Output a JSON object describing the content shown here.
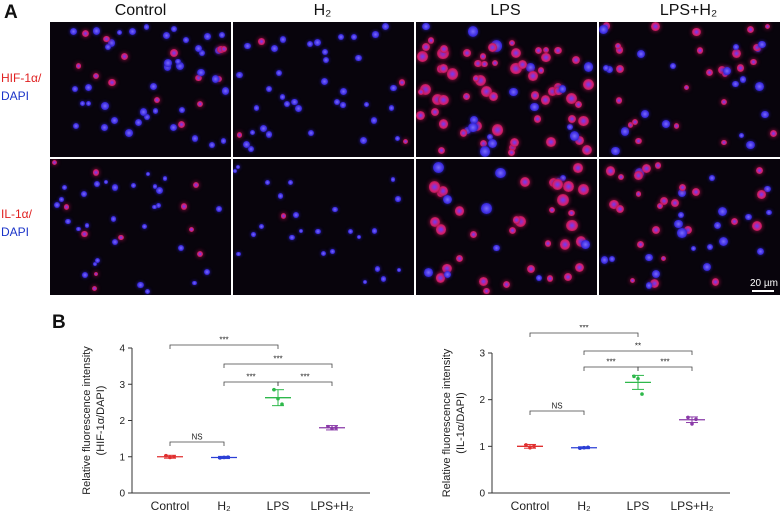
{
  "panel_a": {
    "letter": "A",
    "columns": [
      "Control",
      "H₂",
      "LPS",
      "LPS+H₂"
    ],
    "rows": [
      {
        "marker": "HIF-1α/",
        "stain": "DAPI"
      },
      {
        "marker": "IL-1α/",
        "stain": "DAPI"
      }
    ],
    "scale_bar": "20 µm",
    "colors": {
      "marker": "#e02020",
      "dapi": "#1a33c8",
      "background": "#08040c"
    }
  },
  "panel_b": {
    "letter": "B"
  },
  "chart_data": [
    {
      "type": "scatter",
      "ylabel": "Relative fluorescence intensity (HIF-1α/DAPI)",
      "ylabel_lines": [
        "Relative fluorescence intensity",
        "(HIF-1α/DAPI)"
      ],
      "categories": [
        "Control",
        "H₂",
        "LPS",
        "LPS+H₂"
      ],
      "ylim": [
        0,
        4
      ],
      "yticks": [
        "0",
        "1",
        "2",
        "3",
        "4"
      ],
      "means": [
        1.0,
        0.98,
        2.63,
        1.8
      ],
      "errors": [
        0.04,
        0.03,
        0.22,
        0.06
      ],
      "points": [
        [
          1.03,
          0.98,
          1.0
        ],
        [
          0.97,
          0.98,
          0.99
        ],
        [
          2.85,
          2.6,
          2.45
        ],
        [
          1.83,
          1.78,
          1.8
        ]
      ],
      "colors": [
        "#e03030",
        "#2b3fd6",
        "#2eb84b",
        "#8a3aa8"
      ],
      "significance": [
        {
          "from": 0,
          "to": 1,
          "label": "NS"
        },
        {
          "from": 2,
          "to": 3,
          "label": "***"
        },
        {
          "from": 1,
          "to": 2,
          "label": "***"
        },
        {
          "from": 1,
          "to": 3,
          "label": "***"
        },
        {
          "from": 0,
          "to": 2,
          "label": "***"
        }
      ]
    },
    {
      "type": "scatter",
      "ylabel": "Relative fluorescence intensity (IL-1α/DAPI)",
      "ylabel_lines": [
        "Relative fluorescence intensity",
        "(IL-1α/DAPI)"
      ],
      "categories": [
        "Control",
        "H₂",
        "LPS",
        "LPS+H₂"
      ],
      "ylim": [
        0,
        3
      ],
      "yticks": [
        "0",
        "1",
        "2",
        "3"
      ],
      "means": [
        1.0,
        0.97,
        2.37,
        1.57
      ],
      "errors": [
        0.04,
        0.02,
        0.15,
        0.06
      ],
      "points": [
        [
          1.03,
          0.97,
          1.0
        ],
        [
          0.96,
          0.97,
          0.98
        ],
        [
          2.5,
          2.45,
          2.12
        ],
        [
          1.62,
          1.48,
          1.58
        ]
      ],
      "colors": [
        "#e03030",
        "#2b3fd6",
        "#2eb84b",
        "#8a3aa8"
      ],
      "significance": [
        {
          "from": 0,
          "to": 1,
          "label": "NS"
        },
        {
          "from": 2,
          "to": 3,
          "label": "***"
        },
        {
          "from": 1,
          "to": 2,
          "label": "***"
        },
        {
          "from": 1,
          "to": 3,
          "label": "**"
        },
        {
          "from": 0,
          "to": 2,
          "label": "***"
        }
      ]
    }
  ]
}
